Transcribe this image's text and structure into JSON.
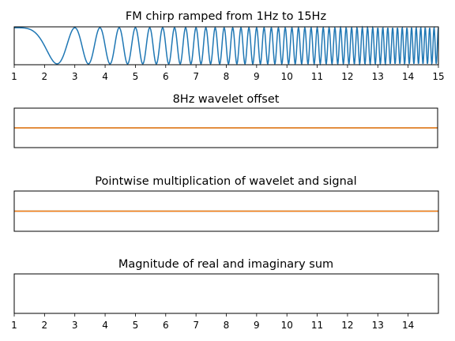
{
  "chart_data": [
    {
      "type": "line",
      "title": "FM chirp ramped from 1Hz to 15Hz",
      "xlabel": "",
      "ylabel": "",
      "xlim": [
        1,
        15
      ],
      "ylim": [
        -1.05,
        1.05
      ],
      "grid": false,
      "x_ticks": [
        1,
        2,
        3,
        4,
        5,
        6,
        7,
        8,
        9,
        10,
        11,
        12,
        13,
        14,
        15
      ],
      "show_y_ticks": false,
      "series": [
        {
          "color": "#1f77b4",
          "function": "cos(2*pi*(0.5*x^2/2 - 0.5*x + 0.25))",
          "sample_count": 1400
        }
      ]
    },
    {
      "type": "line",
      "title": "8Hz wavelet offset",
      "xlabel": "",
      "ylabel": "",
      "xlim": [
        1,
        15
      ],
      "ylim": [
        -1,
        1
      ],
      "grid": false,
      "x_ticks": [],
      "show_y_ticks": false,
      "series": [
        {
          "color": "#1f77b4",
          "x": [
            1,
            15
          ],
          "y": [
            0,
            0
          ]
        },
        {
          "color": "#ff7f0e",
          "x": [
            1,
            15
          ],
          "y": [
            0,
            0
          ]
        }
      ]
    },
    {
      "type": "line",
      "title": "Pointwise multiplication of wavelet and signal",
      "xlabel": "",
      "ylabel": "",
      "xlim": [
        1,
        15
      ],
      "ylim": [
        -1,
        1
      ],
      "grid": false,
      "x_ticks": [],
      "show_y_ticks": false,
      "series": [
        {
          "color": "#1f77b4",
          "x": [
            1,
            15
          ],
          "y": [
            0,
            0
          ]
        },
        {
          "color": "#ff7f0e",
          "x": [
            1,
            15
          ],
          "y": [
            0,
            0
          ]
        }
      ]
    },
    {
      "type": "line",
      "title": "Magnitude of real and imaginary sum",
      "xlabel": "",
      "ylabel": "",
      "xlim": [
        1,
        15
      ],
      "ylim": [
        0,
        1
      ],
      "grid": false,
      "x_ticks": [
        1,
        2,
        3,
        4,
        5,
        6,
        7,
        8,
        9,
        10,
        11,
        12,
        13,
        14
      ],
      "show_y_ticks": false,
      "series": []
    }
  ]
}
